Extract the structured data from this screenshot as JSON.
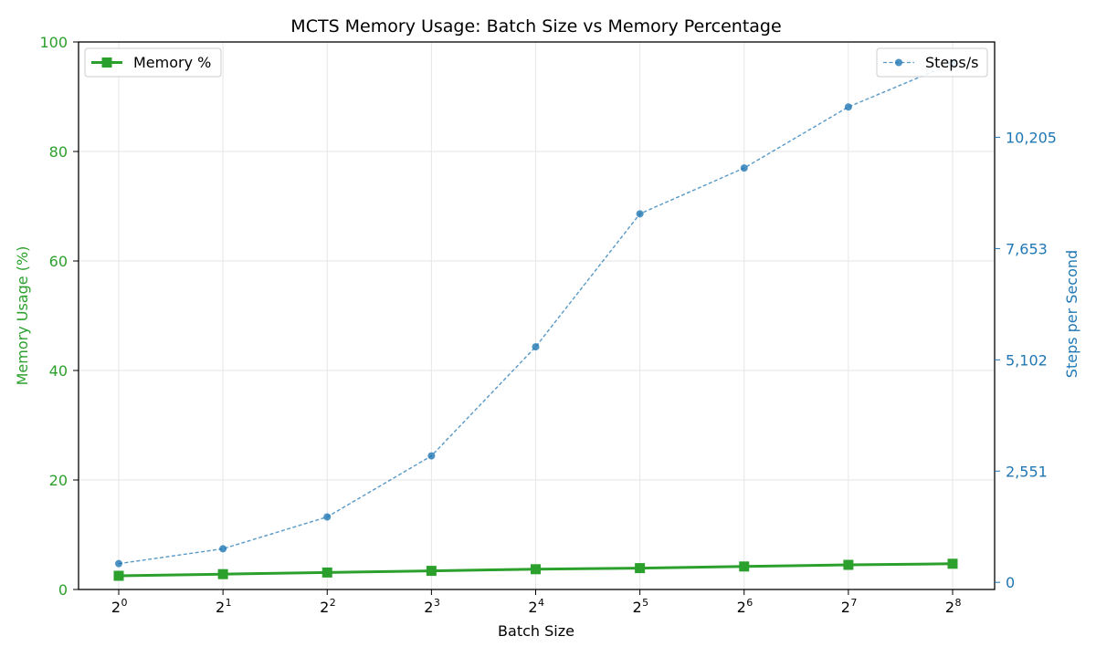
{
  "chart_data": {
    "type": "line",
    "title": "MCTS Memory Usage: Batch Size vs Memory Percentage",
    "xlabel": "Batch Size",
    "ylabel_left": "Memory Usage (%)",
    "ylabel_right": "Steps per Second",
    "x_base": "2",
    "x_exponents": [
      "0",
      "1",
      "2",
      "3",
      "4",
      "5",
      "6",
      "7",
      "8"
    ],
    "x": [
      1,
      2,
      4,
      8,
      16,
      32,
      64,
      128,
      256
    ],
    "left_axis": {
      "ylim": [
        0,
        100
      ],
      "ticks": [
        0,
        20,
        40,
        60,
        80,
        100
      ],
      "tick_labels": [
        "0",
        "20",
        "40",
        "60",
        "80",
        "100"
      ],
      "color": "#2ca02c"
    },
    "right_axis": {
      "ylim": [
        -163,
        12390
      ],
      "ticks": [
        0,
        2551,
        5102,
        7653,
        10205
      ],
      "tick_labels": [
        "0",
        "2,551",
        "5,102",
        "7,653",
        "10,205"
      ],
      "color": "#1f77b4"
    },
    "series": [
      {
        "name": "Memory %",
        "axis": "left",
        "color": "#2ca02c",
        "marker": "square",
        "line": "solid",
        "values": [
          2.5,
          2.8,
          3.1,
          3.4,
          3.7,
          3.9,
          4.2,
          4.5,
          4.7
        ]
      },
      {
        "name": "Steps/s",
        "axis": "right",
        "color": "#1f77b4",
        "marker": "circle",
        "line": "dashed",
        "values": [
          430,
          770,
          1500,
          2900,
          5400,
          8450,
          9500,
          10900,
          11900
        ]
      }
    ],
    "grid": true,
    "legend_left": "top-left",
    "legend_right": "top-right"
  }
}
